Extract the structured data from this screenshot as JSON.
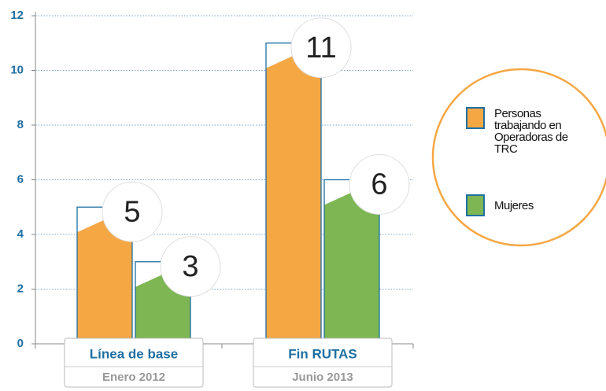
{
  "chart_data": {
    "type": "bar",
    "categories": [
      "Línea de base",
      "Fin RUTAS"
    ],
    "category_subtitles": [
      "Enero 2012",
      "Junio 2013"
    ],
    "series": [
      {
        "name": "Personas trabajando en Operadoras de TRC",
        "color": "#f5a744",
        "values": [
          5,
          11
        ]
      },
      {
        "name": "Mujeres",
        "color": "#7db652",
        "values": [
          3,
          6
        ]
      }
    ],
    "ylim": [
      0,
      12
    ],
    "yticks": [
      0,
      2,
      4,
      6,
      8,
      10,
      12
    ],
    "grid": true,
    "legend": "right"
  }
}
